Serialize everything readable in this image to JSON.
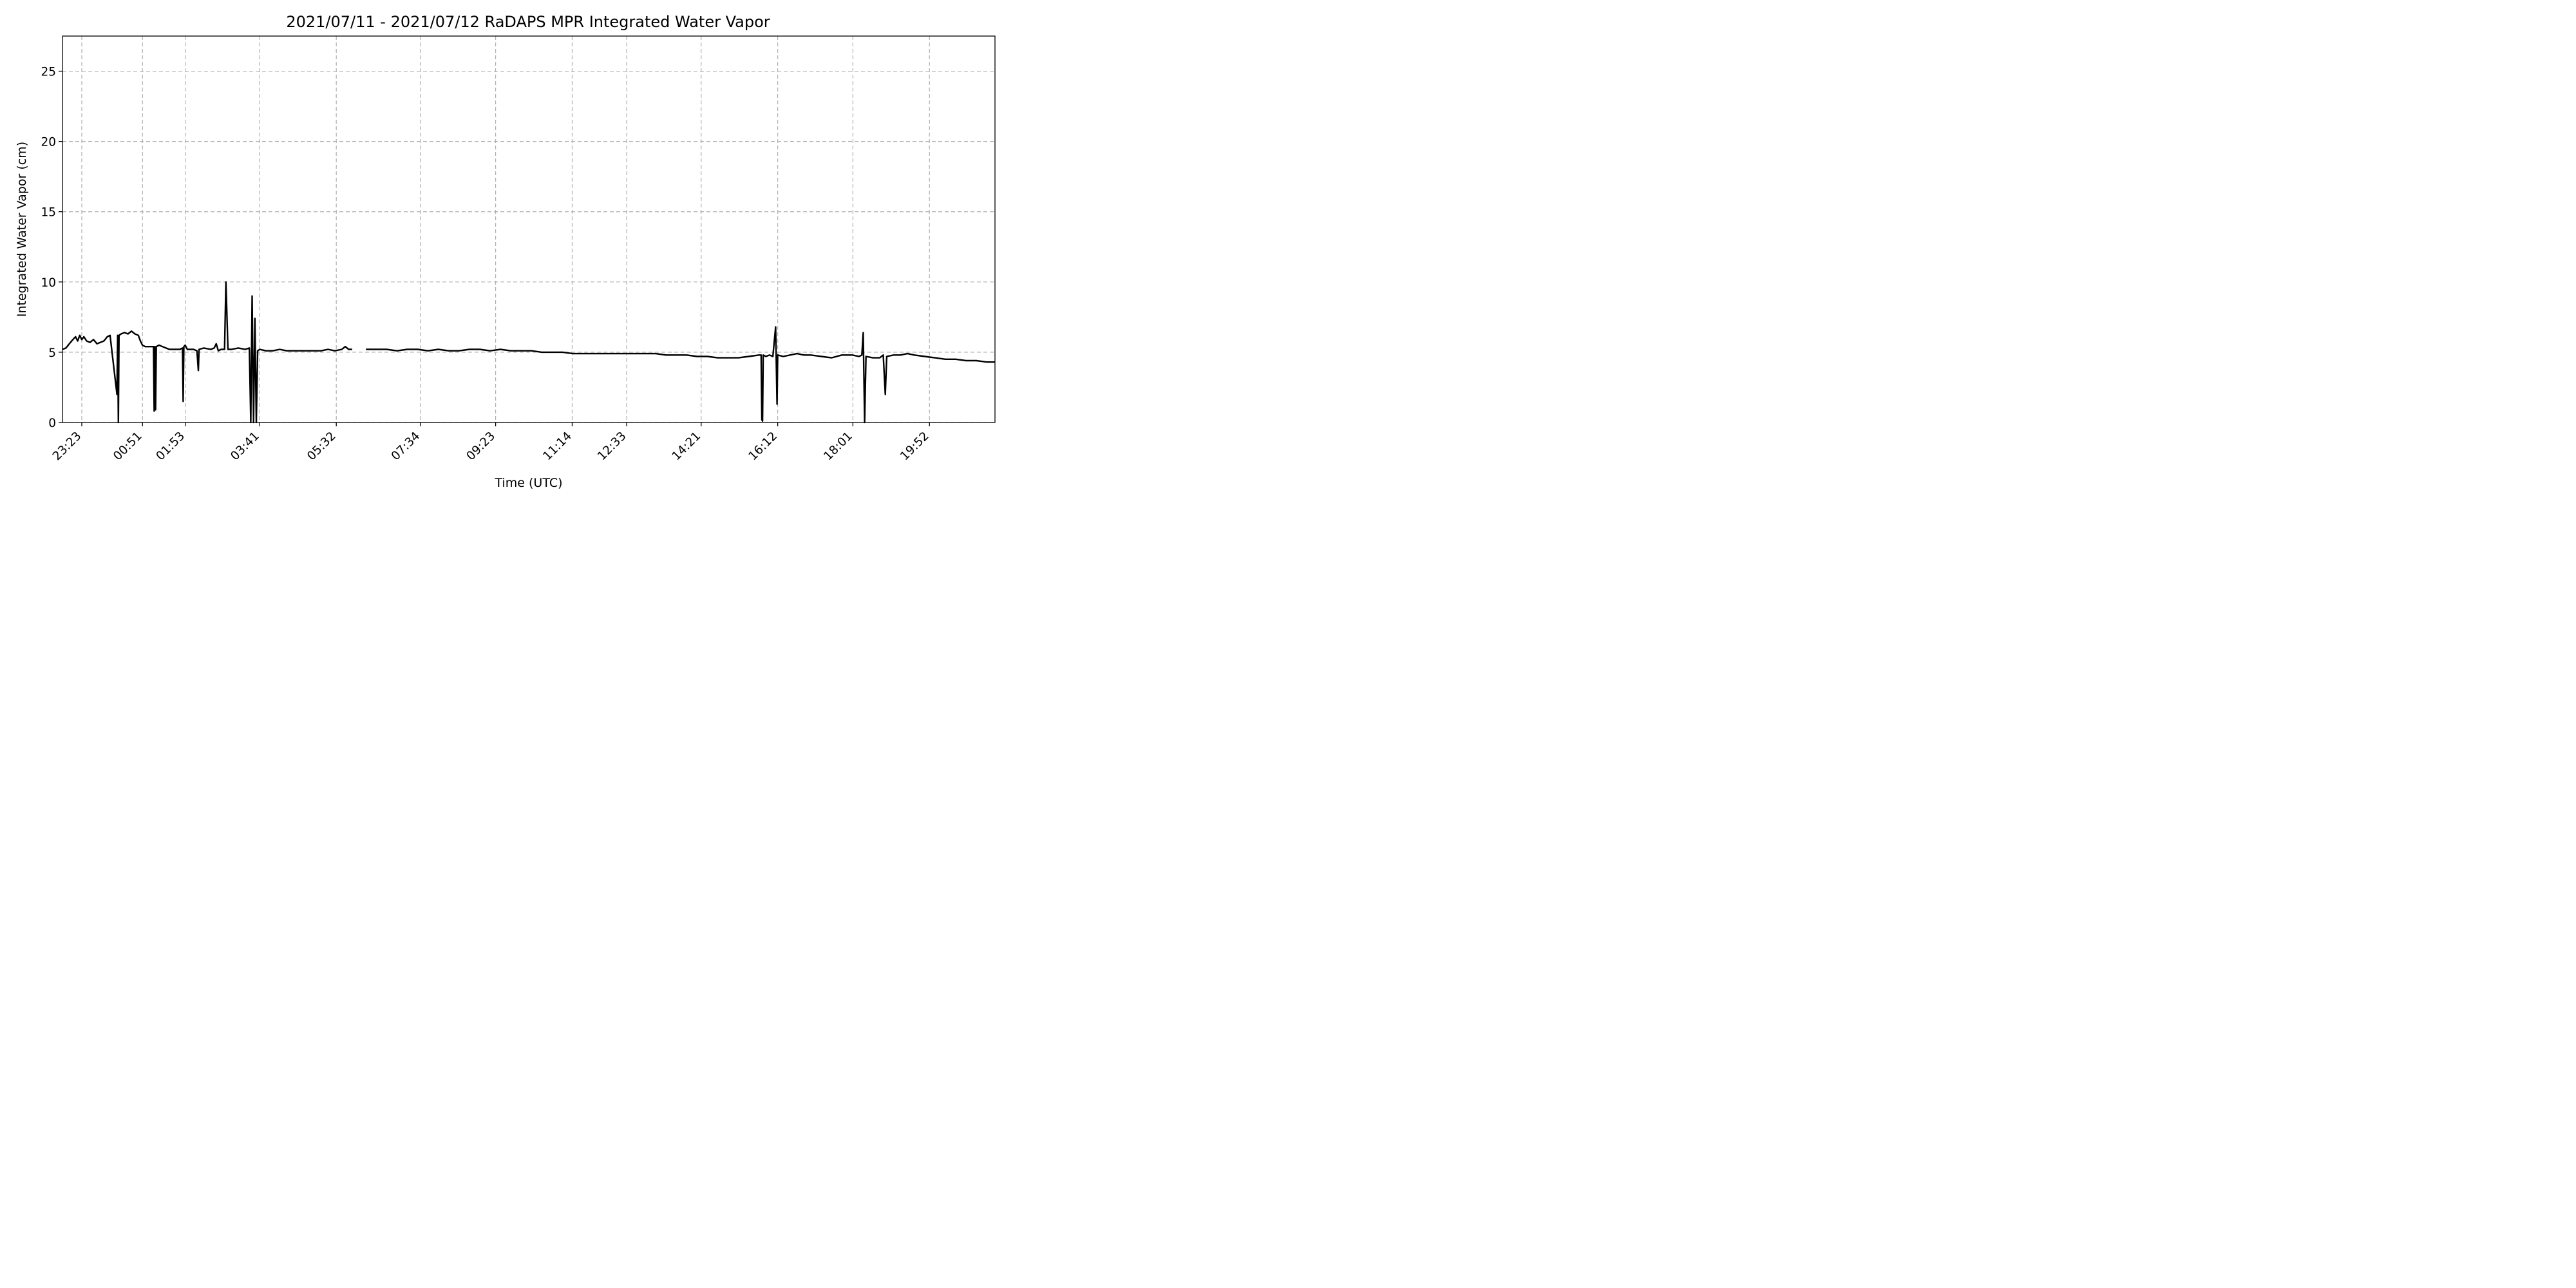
{
  "chart_data": {
    "type": "line",
    "title": "2021/07/11 - 2021/07/12 RaDAPS MPR Integrated Water Vapor",
    "xlabel": "Time (UTC)",
    "ylabel": "Integrated Water Vapor (cm)",
    "x_unit": "UTC time (2021-07-11 22:55 to 2021-07-12 21:27)",
    "xlim": [
      "22:55",
      "21:27"
    ],
    "ylim": [
      0,
      27.5
    ],
    "grid": true,
    "legend": "none",
    "line_color": "#000000",
    "x_ticks": [
      "23:23",
      "00:51",
      "01:53",
      "03:41",
      "05:32",
      "07:34",
      "09:23",
      "11:14",
      "12:33",
      "14:21",
      "16:12",
      "18:01",
      "19:52"
    ],
    "y_ticks": [
      0,
      5,
      10,
      15,
      20,
      25
    ],
    "series": [
      {
        "segments": [
          [
            [
              "22:55",
              5.2
            ],
            [
              "23:00",
              5.3
            ],
            [
              "23:05",
              5.6
            ],
            [
              "23:10",
              5.9
            ],
            [
              "23:14",
              6.1
            ],
            [
              "23:17",
              5.8
            ],
            [
              "23:20",
              6.2
            ],
            [
              "23:23",
              5.9
            ],
            [
              "23:26",
              6.1
            ],
            [
              "23:30",
              5.8
            ],
            [
              "23:35",
              5.7
            ],
            [
              "23:40",
              5.9
            ],
            [
              "23:45",
              5.6
            ],
            [
              "23:50",
              5.7
            ],
            [
              "23:55",
              5.8
            ],
            [
              "00:00",
              6.1
            ],
            [
              "00:04",
              6.2
            ],
            [
              "00:14",
              2.0
            ],
            [
              "00:15",
              6.2
            ],
            [
              "00:16",
              0.0
            ],
            [
              "00:17",
              6.2
            ],
            [
              "00:20",
              6.3
            ],
            [
              "00:25",
              6.4
            ],
            [
              "00:30",
              6.3
            ],
            [
              "00:35",
              6.5
            ],
            [
              "00:40",
              6.3
            ],
            [
              "00:45",
              6.2
            ],
            [
              "00:48",
              5.8
            ],
            [
              "00:51",
              5.5
            ],
            [
              "00:55",
              5.4
            ],
            [
              "01:00",
              5.4
            ],
            [
              "01:05",
              5.4
            ],
            [
              "01:07",
              5.4
            ],
            [
              "01:08",
              0.8
            ],
            [
              "01:09",
              5.4
            ],
            [
              "01:10",
              0.9
            ],
            [
              "01:11",
              5.4
            ],
            [
              "01:15",
              5.5
            ],
            [
              "01:20",
              5.4
            ],
            [
              "01:25",
              5.3
            ],
            [
              "01:30",
              5.2
            ],
            [
              "01:35",
              5.2
            ],
            [
              "01:40",
              5.2
            ],
            [
              "01:45",
              5.2
            ],
            [
              "01:49",
              5.3
            ],
            [
              "01:50",
              1.5
            ],
            [
              "01:51",
              5.4
            ],
            [
              "01:53",
              5.5
            ],
            [
              "01:56",
              5.2
            ],
            [
              "02:00",
              5.2
            ],
            [
              "02:05",
              5.2
            ],
            [
              "02:10",
              5.1
            ],
            [
              "02:12",
              3.7
            ],
            [
              "02:13",
              5.2
            ],
            [
              "02:20",
              5.3
            ],
            [
              "02:30",
              5.2
            ],
            [
              "02:35",
              5.3
            ],
            [
              "02:38",
              5.6
            ],
            [
              "02:41",
              5.1
            ],
            [
              "02:45",
              5.2
            ],
            [
              "02:50",
              5.2
            ],
            [
              "02:52",
              10.0
            ],
            [
              "02:55",
              5.2
            ],
            [
              "03:00",
              5.2
            ],
            [
              "03:10",
              5.3
            ],
            [
              "03:20",
              5.2
            ],
            [
              "03:26",
              5.3
            ],
            [
              "03:28",
              0.0
            ],
            [
              "03:30",
              9.0
            ],
            [
              "03:32",
              0.0
            ],
            [
              "03:34",
              7.4
            ],
            [
              "03:36",
              0.0
            ],
            [
              "03:38",
              5.1
            ],
            [
              "03:41",
              5.2
            ],
            [
              "03:50",
              5.1
            ],
            [
              "04:00",
              5.1
            ],
            [
              "04:10",
              5.2
            ],
            [
              "04:20",
              5.1
            ],
            [
              "04:30",
              5.1
            ],
            [
              "04:40",
              5.1
            ],
            [
              "04:50",
              5.1
            ],
            [
              "05:00",
              5.1
            ],
            [
              "05:10",
              5.1
            ],
            [
              "05:20",
              5.2
            ],
            [
              "05:30",
              5.1
            ],
            [
              "05:40",
              5.2
            ],
            [
              "05:45",
              5.4
            ],
            [
              "05:50",
              5.2
            ],
            [
              "05:55",
              5.2
            ]
          ],
          [
            [
              "06:15",
              5.2
            ],
            [
              "06:30",
              5.2
            ],
            [
              "06:45",
              5.2
            ],
            [
              "07:00",
              5.1
            ],
            [
              "07:15",
              5.2
            ],
            [
              "07:30",
              5.2
            ],
            [
              "07:45",
              5.1
            ],
            [
              "08:00",
              5.2
            ],
            [
              "08:15",
              5.1
            ],
            [
              "08:30",
              5.1
            ],
            [
              "08:45",
              5.2
            ],
            [
              "09:00",
              5.2
            ],
            [
              "09:15",
              5.1
            ],
            [
              "09:30",
              5.2
            ],
            [
              "09:45",
              5.1
            ],
            [
              "10:00",
              5.1
            ],
            [
              "10:15",
              5.1
            ],
            [
              "10:30",
              5.0
            ],
            [
              "10:45",
              5.0
            ],
            [
              "11:00",
              5.0
            ],
            [
              "11:15",
              4.9
            ],
            [
              "11:30",
              4.9
            ],
            [
              "11:45",
              4.9
            ],
            [
              "12:00",
              4.9
            ],
            [
              "12:15",
              4.9
            ],
            [
              "12:30",
              4.9
            ],
            [
              "12:45",
              4.9
            ],
            [
              "13:00",
              4.9
            ],
            [
              "13:15",
              4.9
            ],
            [
              "13:30",
              4.8
            ],
            [
              "13:45",
              4.8
            ],
            [
              "14:00",
              4.8
            ],
            [
              "14:15",
              4.7
            ],
            [
              "14:30",
              4.7
            ],
            [
              "14:45",
              4.6
            ],
            [
              "15:00",
              4.6
            ],
            [
              "15:15",
              4.6
            ],
            [
              "15:30",
              4.7
            ],
            [
              "15:45",
              4.8
            ],
            [
              "15:48",
              4.8
            ],
            [
              "15:49",
              0.2
            ],
            [
              "15:50",
              0.1
            ],
            [
              "15:51",
              4.8
            ],
            [
              "15:55",
              4.7
            ],
            [
              "16:00",
              4.8
            ],
            [
              "16:05",
              4.7
            ],
            [
              "16:09",
              6.8
            ],
            [
              "16:11",
              1.3
            ],
            [
              "16:12",
              4.8
            ],
            [
              "16:20",
              4.7
            ],
            [
              "16:30",
              4.8
            ],
            [
              "16:40",
              4.9
            ],
            [
              "16:50",
              4.8
            ],
            [
              "17:00",
              4.8
            ],
            [
              "17:15",
              4.7
            ],
            [
              "17:30",
              4.6
            ],
            [
              "17:45",
              4.8
            ],
            [
              "18:00",
              4.8
            ],
            [
              "18:10",
              4.7
            ],
            [
              "18:14",
              4.8
            ],
            [
              "18:16",
              6.4
            ],
            [
              "18:18",
              0.0
            ],
            [
              "18:20",
              4.7
            ],
            [
              "18:30",
              4.6
            ],
            [
              "18:40",
              4.6
            ],
            [
              "18:45",
              4.8
            ],
            [
              "18:48",
              2.0
            ],
            [
              "18:50",
              4.7
            ],
            [
              "19:00",
              4.8
            ],
            [
              "19:10",
              4.8
            ],
            [
              "19:20",
              4.9
            ],
            [
              "19:30",
              4.8
            ],
            [
              "19:45",
              4.7
            ],
            [
              "20:00",
              4.6
            ],
            [
              "20:15",
              4.5
            ],
            [
              "20:30",
              4.5
            ],
            [
              "20:45",
              4.4
            ],
            [
              "21:00",
              4.4
            ],
            [
              "21:15",
              4.3
            ],
            [
              "21:27",
              4.3
            ]
          ]
        ]
      }
    ]
  }
}
